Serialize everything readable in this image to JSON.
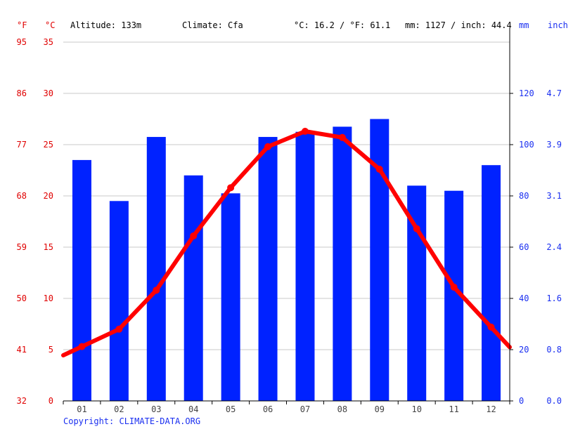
{
  "header": {
    "unit_f": "°F",
    "unit_c": "°C",
    "altitude": "Altitude: 133m",
    "climate": "Climate: Cfa",
    "temp_avg": "°C: 16.2 / °F: 61.1",
    "precip_total": "mm: 1127 / inch: 44.4",
    "unit_mm": "mm",
    "unit_inch": "inch"
  },
  "footer": {
    "copyright": "Copyright: CLIMATE-DATA.ORG"
  },
  "colors": {
    "temperature": "#ff0000",
    "precipitation": "#0022ff",
    "grid": "#c8c8c8",
    "axis_text": "#444444"
  },
  "chart_data": {
    "type": "bar",
    "categories": [
      "01",
      "02",
      "03",
      "04",
      "05",
      "06",
      "07",
      "08",
      "09",
      "10",
      "11",
      "12"
    ],
    "series": [
      {
        "kind": "bar",
        "axis": "right",
        "values": [
          94,
          78,
          103,
          88,
          81,
          103,
          105,
          107,
          110,
          84,
          82,
          92
        ]
      },
      {
        "kind": "line",
        "axis": "left",
        "values": [
          5.3,
          7.0,
          10.8,
          16.1,
          20.8,
          24.8,
          26.3,
          25.7,
          22.6,
          16.8,
          11.1,
          7.2
        ]
      }
    ],
    "ylim_left_c": [
      0,
      35
    ],
    "yticks_left_c": [
      "0",
      "5",
      "10",
      "15",
      "20",
      "25",
      "30",
      "35"
    ],
    "yticks_left_f": [
      "32",
      "41",
      "50",
      "59",
      "68",
      "77",
      "86",
      "95"
    ],
    "ylim_right_mm": [
      0,
      140
    ],
    "yticks_right_mm": [
      "0",
      "20",
      "40",
      "60",
      "80",
      "100",
      "120"
    ],
    "yticks_right_inch": [
      "0.0",
      "0.8",
      "1.6",
      "2.4",
      "3.1",
      "3.9",
      "4.7"
    ],
    "grid": true
  }
}
